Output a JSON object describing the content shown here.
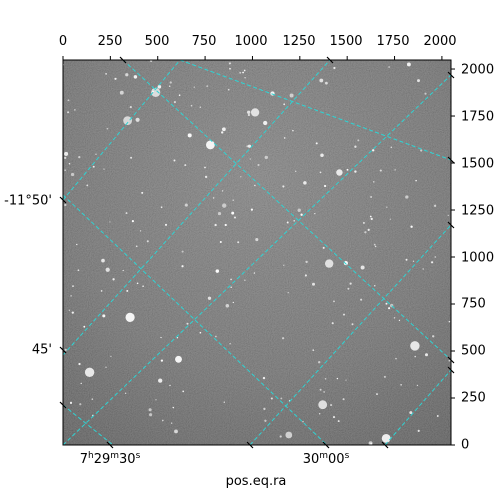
{
  "chart_data": {
    "type": "image",
    "pixel_axes": {
      "x_ticks": [
        0,
        250,
        500,
        750,
        1000,
        1250,
        1500,
        1750,
        2000
      ],
      "y_ticks": [
        0,
        250,
        500,
        750,
        1000,
        1250,
        1500,
        1750,
        2000
      ],
      "xlim": [
        0,
        2048
      ],
      "ylim": [
        0,
        2048
      ]
    },
    "world_axes": {
      "dec_labels": [
        "-11°50'",
        "45'"
      ],
      "ra_labels": [
        {
          "h": "7",
          "m": "29",
          "s": "30"
        },
        {
          "m": "30",
          "s": "00"
        }
      ],
      "xlabel": "pos.eq.ra"
    },
    "grid": true,
    "colors": {
      "grid": "#2fd3d3",
      "frame": "#000000",
      "sky": "#6a6a6a"
    }
  }
}
